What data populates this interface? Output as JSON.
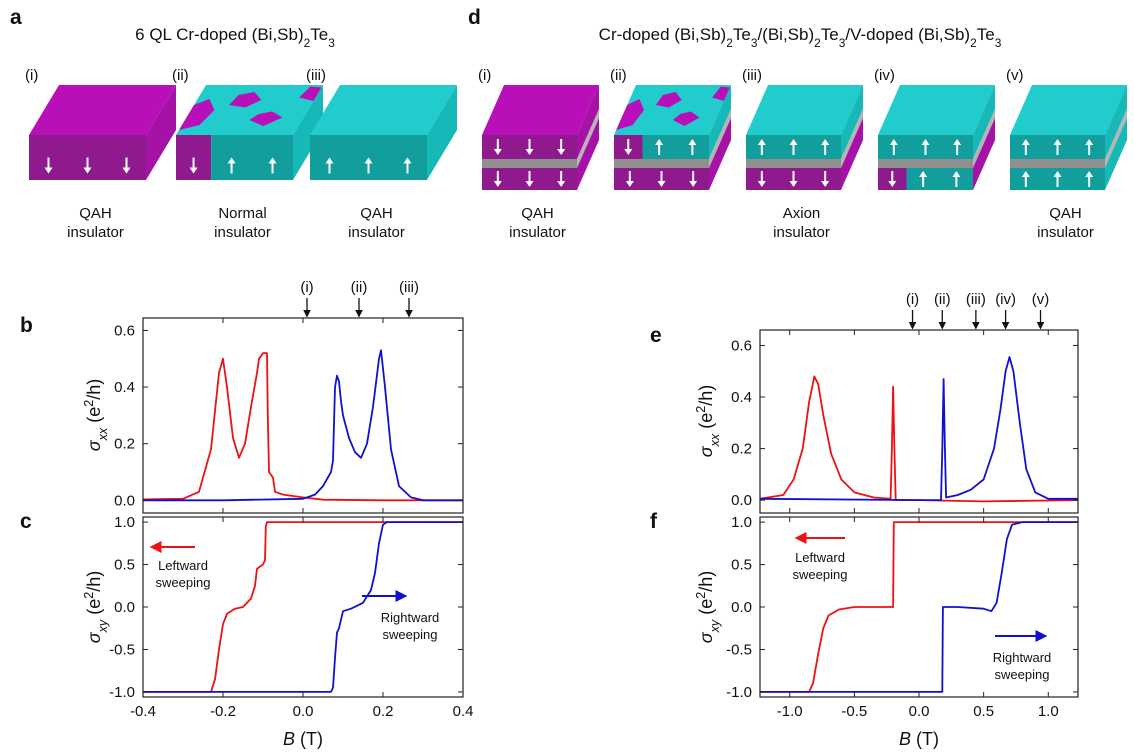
{
  "panel_letters": [
    "a",
    "b",
    "c",
    "d",
    "e",
    "f"
  ],
  "diagrams": [
    {
      "title": [
        "6 QL Cr-doped (Bi,Sb)",
        "2",
        "Te",
        "3"
      ],
      "blocks": [
        {
          "tag": "(i)",
          "label": [
            "QAH",
            "insulator"
          ]
        },
        {
          "tag": "(ii)",
          "label": [
            "Normal",
            "insulator"
          ]
        },
        {
          "tag": "(iii)",
          "label": [
            "QAH",
            "insulator"
          ]
        }
      ]
    },
    {
      "title": [
        "Cr-doped (Bi,Sb)",
        "2",
        "Te",
        "3",
        "/(Bi,Sb)",
        "2",
        "Te",
        "3",
        "/V-doped (Bi,Sb)",
        "2",
        "Te",
        "3"
      ],
      "blocks": [
        {
          "tag": "(i)",
          "label": [
            "QAH",
            "insulator"
          ]
        },
        {
          "tag": "(ii)"
        },
        {
          "tag": "(iii)",
          "label": [
            "Axion",
            "insulator"
          ]
        },
        {
          "tag": "(iv)"
        },
        {
          "tag": "(v)",
          "label": [
            "QAH",
            "insulator"
          ]
        }
      ]
    }
  ],
  "chart_data": [
    {
      "type": "line",
      "ylabel": [
        "σ",
        "xx",
        " (e",
        "2",
        "/h)"
      ],
      "xlim": [
        -0.4,
        0.4
      ],
      "ylim": [
        -0.045,
        0.644
      ],
      "xticks": [
        -0.4,
        -0.2,
        {
          "value": 0,
          "label": "0.0"
        },
        0.2,
        0.4
      ],
      "xtick_labels": false,
      "yticks": [
        {
          "value": 0,
          "label": "0.0"
        },
        0.2,
        0.4,
        0.6
      ],
      "markers": [
        {
          "label": "(i)",
          "x": 0.01
        },
        {
          "label": "(ii)",
          "x": 0.14
        },
        {
          "label": "(iii)",
          "x": 0.265
        }
      ],
      "series": [
        {
          "color": "#ee1111",
          "x": [
            -0.4,
            -0.3,
            -0.26,
            -0.23,
            -0.21,
            -0.2,
            -0.19,
            -0.175,
            -0.16,
            -0.145,
            -0.13,
            -0.115,
            -0.11,
            -0.1,
            -0.09,
            -0.088,
            -0.085,
            -0.075,
            -0.07,
            -0.05,
            0,
            0.05,
            0.2,
            0.4
          ],
          "values": [
            0.003,
            0.005,
            0.03,
            0.18,
            0.45,
            0.5,
            0.4,
            0.22,
            0.15,
            0.2,
            0.33,
            0.45,
            0.5,
            0.52,
            0.52,
            0.3,
            0.1,
            0.08,
            0.03,
            0.02,
            0.01,
            0.002,
            0,
            0
          ]
        },
        {
          "color": "#1010d0",
          "x": [
            -0.4,
            -0.2,
            0,
            0.03,
            0.05,
            0.07,
            0.075,
            0.08,
            0.085,
            0.09,
            0.095,
            0.1,
            0.115,
            0.13,
            0.145,
            0.16,
            0.175,
            0.19,
            0.195,
            0.205,
            0.22,
            0.24,
            0.27,
            0.3,
            0.4
          ],
          "values": [
            0,
            0,
            0.005,
            0.02,
            0.05,
            0.1,
            0.14,
            0.4,
            0.44,
            0.42,
            0.35,
            0.3,
            0.22,
            0.17,
            0.15,
            0.2,
            0.33,
            0.5,
            0.53,
            0.4,
            0.18,
            0.05,
            0.01,
            0,
            0
          ]
        }
      ]
    },
    {
      "type": "line",
      "ylabel": [
        "σ",
        "xy",
        " (e",
        "2",
        "/h)"
      ],
      "xlabel": [
        "B",
        " (T)"
      ],
      "xlim": [
        -0.4,
        0.4
      ],
      "ylim": [
        -1.06,
        1.06
      ],
      "xticks": [
        -0.4,
        -0.2,
        {
          "value": 0,
          "label": "0.0"
        },
        0.2,
        0.4
      ],
      "yticks": [
        {
          "value": -1,
          "label": "-1.0"
        },
        -0.5,
        {
          "value": 0,
          "label": "0.0"
        },
        0.5,
        {
          "value": 1,
          "label": "1.0"
        }
      ],
      "annotations": [
        {
          "text": [
            "Leftward",
            "sweeping"
          ],
          "color": "#ee1111"
        },
        {
          "text": [
            "Rightward",
            "sweeping"
          ],
          "color": "#1010d0"
        }
      ],
      "series": [
        {
          "color": "#ee1111",
          "x": [
            -0.4,
            -0.23,
            -0.22,
            -0.21,
            -0.2,
            -0.19,
            -0.17,
            -0.15,
            -0.13,
            -0.12,
            -0.115,
            -0.1,
            -0.095,
            -0.093,
            -0.09,
            0.4
          ],
          "values": [
            -1,
            -1,
            -0.85,
            -0.5,
            -0.2,
            -0.08,
            -0.02,
            0,
            0.1,
            0.25,
            0.45,
            0.5,
            0.55,
            0.95,
            1,
            1
          ]
        },
        {
          "color": "#1010d0",
          "x": [
            -0.4,
            0.07,
            0.075,
            0.08,
            0.085,
            0.09,
            0.1,
            0.12,
            0.15,
            0.17,
            0.18,
            0.19,
            0.2,
            0.21,
            0.4
          ],
          "values": [
            -1,
            -1,
            -0.95,
            -0.6,
            -0.3,
            -0.25,
            -0.05,
            -0.02,
            0.05,
            0.2,
            0.4,
            0.75,
            0.97,
            1,
            1
          ]
        }
      ]
    },
    {
      "type": "line",
      "ylabel": [
        "σ",
        "xx",
        " (e",
        "2",
        "/h)"
      ],
      "xlim": [
        -1.23,
        1.23
      ],
      "ylim": [
        -0.05,
        0.66
      ],
      "xticks": [
        {
          "value": -1,
          "label": "-1.0"
        },
        -0.5,
        {
          "value": 0,
          "label": "0.0"
        },
        0.5,
        {
          "value": 1,
          "label": "1.0"
        }
      ],
      "xtick_labels": false,
      "yticks": [
        {
          "value": 0,
          "label": "0.0"
        },
        0.2,
        0.4,
        0.6
      ],
      "markers": [
        {
          "label": "(i)",
          "x": -0.05
        },
        {
          "label": "(ii)",
          "x": 0.18
        },
        {
          "label": "(iii)",
          "x": 0.44
        },
        {
          "label": "(iv)",
          "x": 0.67
        },
        {
          "label": "(v)",
          "x": 0.94
        }
      ],
      "series": [
        {
          "color": "#ee1111",
          "x": [
            -1.23,
            -1.05,
            -0.97,
            -0.9,
            -0.85,
            -0.81,
            -0.78,
            -0.74,
            -0.68,
            -0.6,
            -0.5,
            -0.35,
            -0.22,
            -0.21,
            -0.2,
            -0.19,
            -0.18,
            0,
            0.5,
            1.23
          ],
          "values": [
            0.005,
            0.02,
            0.08,
            0.2,
            0.38,
            0.48,
            0.45,
            0.33,
            0.18,
            0.08,
            0.03,
            0.01,
            0.005,
            0.2,
            0.44,
            0.2,
            0,
            0,
            -0.005,
            0
          ]
        },
        {
          "color": "#1010d0",
          "x": [
            -1.23,
            0,
            0.17,
            0.18,
            0.19,
            0.2,
            0.21,
            0.3,
            0.4,
            0.5,
            0.58,
            0.63,
            0.67,
            0.7,
            0.73,
            0.78,
            0.83,
            0.9,
            1,
            1.23
          ],
          "values": [
            0.005,
            0,
            0,
            0.2,
            0.47,
            0.2,
            0.01,
            0.02,
            0.04,
            0.08,
            0.2,
            0.35,
            0.5,
            0.555,
            0.5,
            0.3,
            0.12,
            0.03,
            0.005,
            0.005
          ]
        }
      ]
    },
    {
      "type": "line",
      "ylabel": [
        "σ",
        "xy",
        " (e",
        "2",
        "/h)"
      ],
      "xlabel": [
        "B",
        " (T)"
      ],
      "xlim": [
        -1.23,
        1.23
      ],
      "ylim": [
        -1.06,
        1.06
      ],
      "xticks": [
        {
          "value": -1,
          "label": "-1.0"
        },
        -0.5,
        {
          "value": 0,
          "label": "0.0"
        },
        0.5,
        {
          "value": 1,
          "label": "1.0"
        }
      ],
      "yticks": [
        {
          "value": -1,
          "label": "-1.0"
        },
        -0.5,
        {
          "value": 0,
          "label": "0.0"
        },
        0.5,
        {
          "value": 1,
          "label": "1.0"
        }
      ],
      "annotations": [
        {
          "text": [
            "Leftward",
            "sweeping"
          ],
          "color": "#ee1111"
        },
        {
          "text": [
            "Rightward",
            "sweeping"
          ],
          "color": "#1010d0"
        }
      ],
      "series": [
        {
          "color": "#ee1111",
          "x": [
            -1.23,
            -0.85,
            -0.82,
            -0.78,
            -0.74,
            -0.7,
            -0.62,
            -0.5,
            -0.2,
            -0.195,
            1.23
          ],
          "values": [
            -1,
            -1,
            -0.9,
            -0.55,
            -0.25,
            -0.1,
            -0.03,
            0,
            0,
            1,
            1
          ]
        },
        {
          "color": "#1010d0",
          "x": [
            -1.23,
            0.18,
            0.185,
            0.3,
            0.5,
            0.56,
            0.6,
            0.64,
            0.68,
            0.72,
            0.8,
            1.23
          ],
          "values": [
            -1,
            -1,
            0,
            0,
            -0.02,
            -0.05,
            0.05,
            0.4,
            0.8,
            0.97,
            1,
            1
          ]
        }
      ]
    }
  ]
}
